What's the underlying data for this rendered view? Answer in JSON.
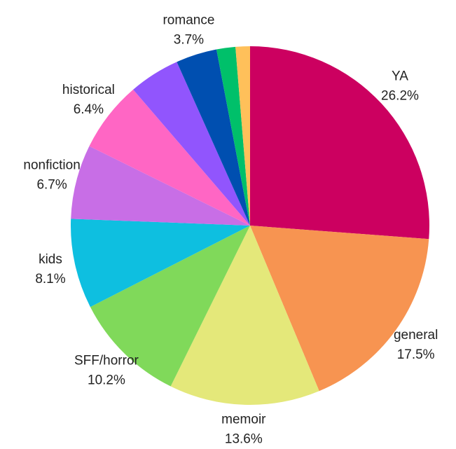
{
  "chart_data": {
    "type": "pie",
    "categories": [
      "YA",
      "general",
      "memoir",
      "SFF/horror",
      "kids",
      "nonfiction",
      "historical",
      null,
      "romance",
      null,
      null
    ],
    "values": [
      26.2,
      17.5,
      13.6,
      10.2,
      8.1,
      6.7,
      6.4,
      4.6,
      3.7,
      1.7,
      1.3
    ],
    "value_labels": [
      "26.2%",
      "17.5%",
      "13.6%",
      "10.2%",
      "8.1%",
      "6.7%",
      "6.4%",
      null,
      "3.7%",
      null,
      null
    ],
    "colors": [
      "#cc0060",
      "#f79451",
      "#e4e87a",
      "#80d95a",
      "#0ebfe0",
      "#c86ee6",
      "#ff66c4",
      "#9155fd",
      "#004fb0",
      "#00c06a",
      "#ffc05a"
    ]
  }
}
